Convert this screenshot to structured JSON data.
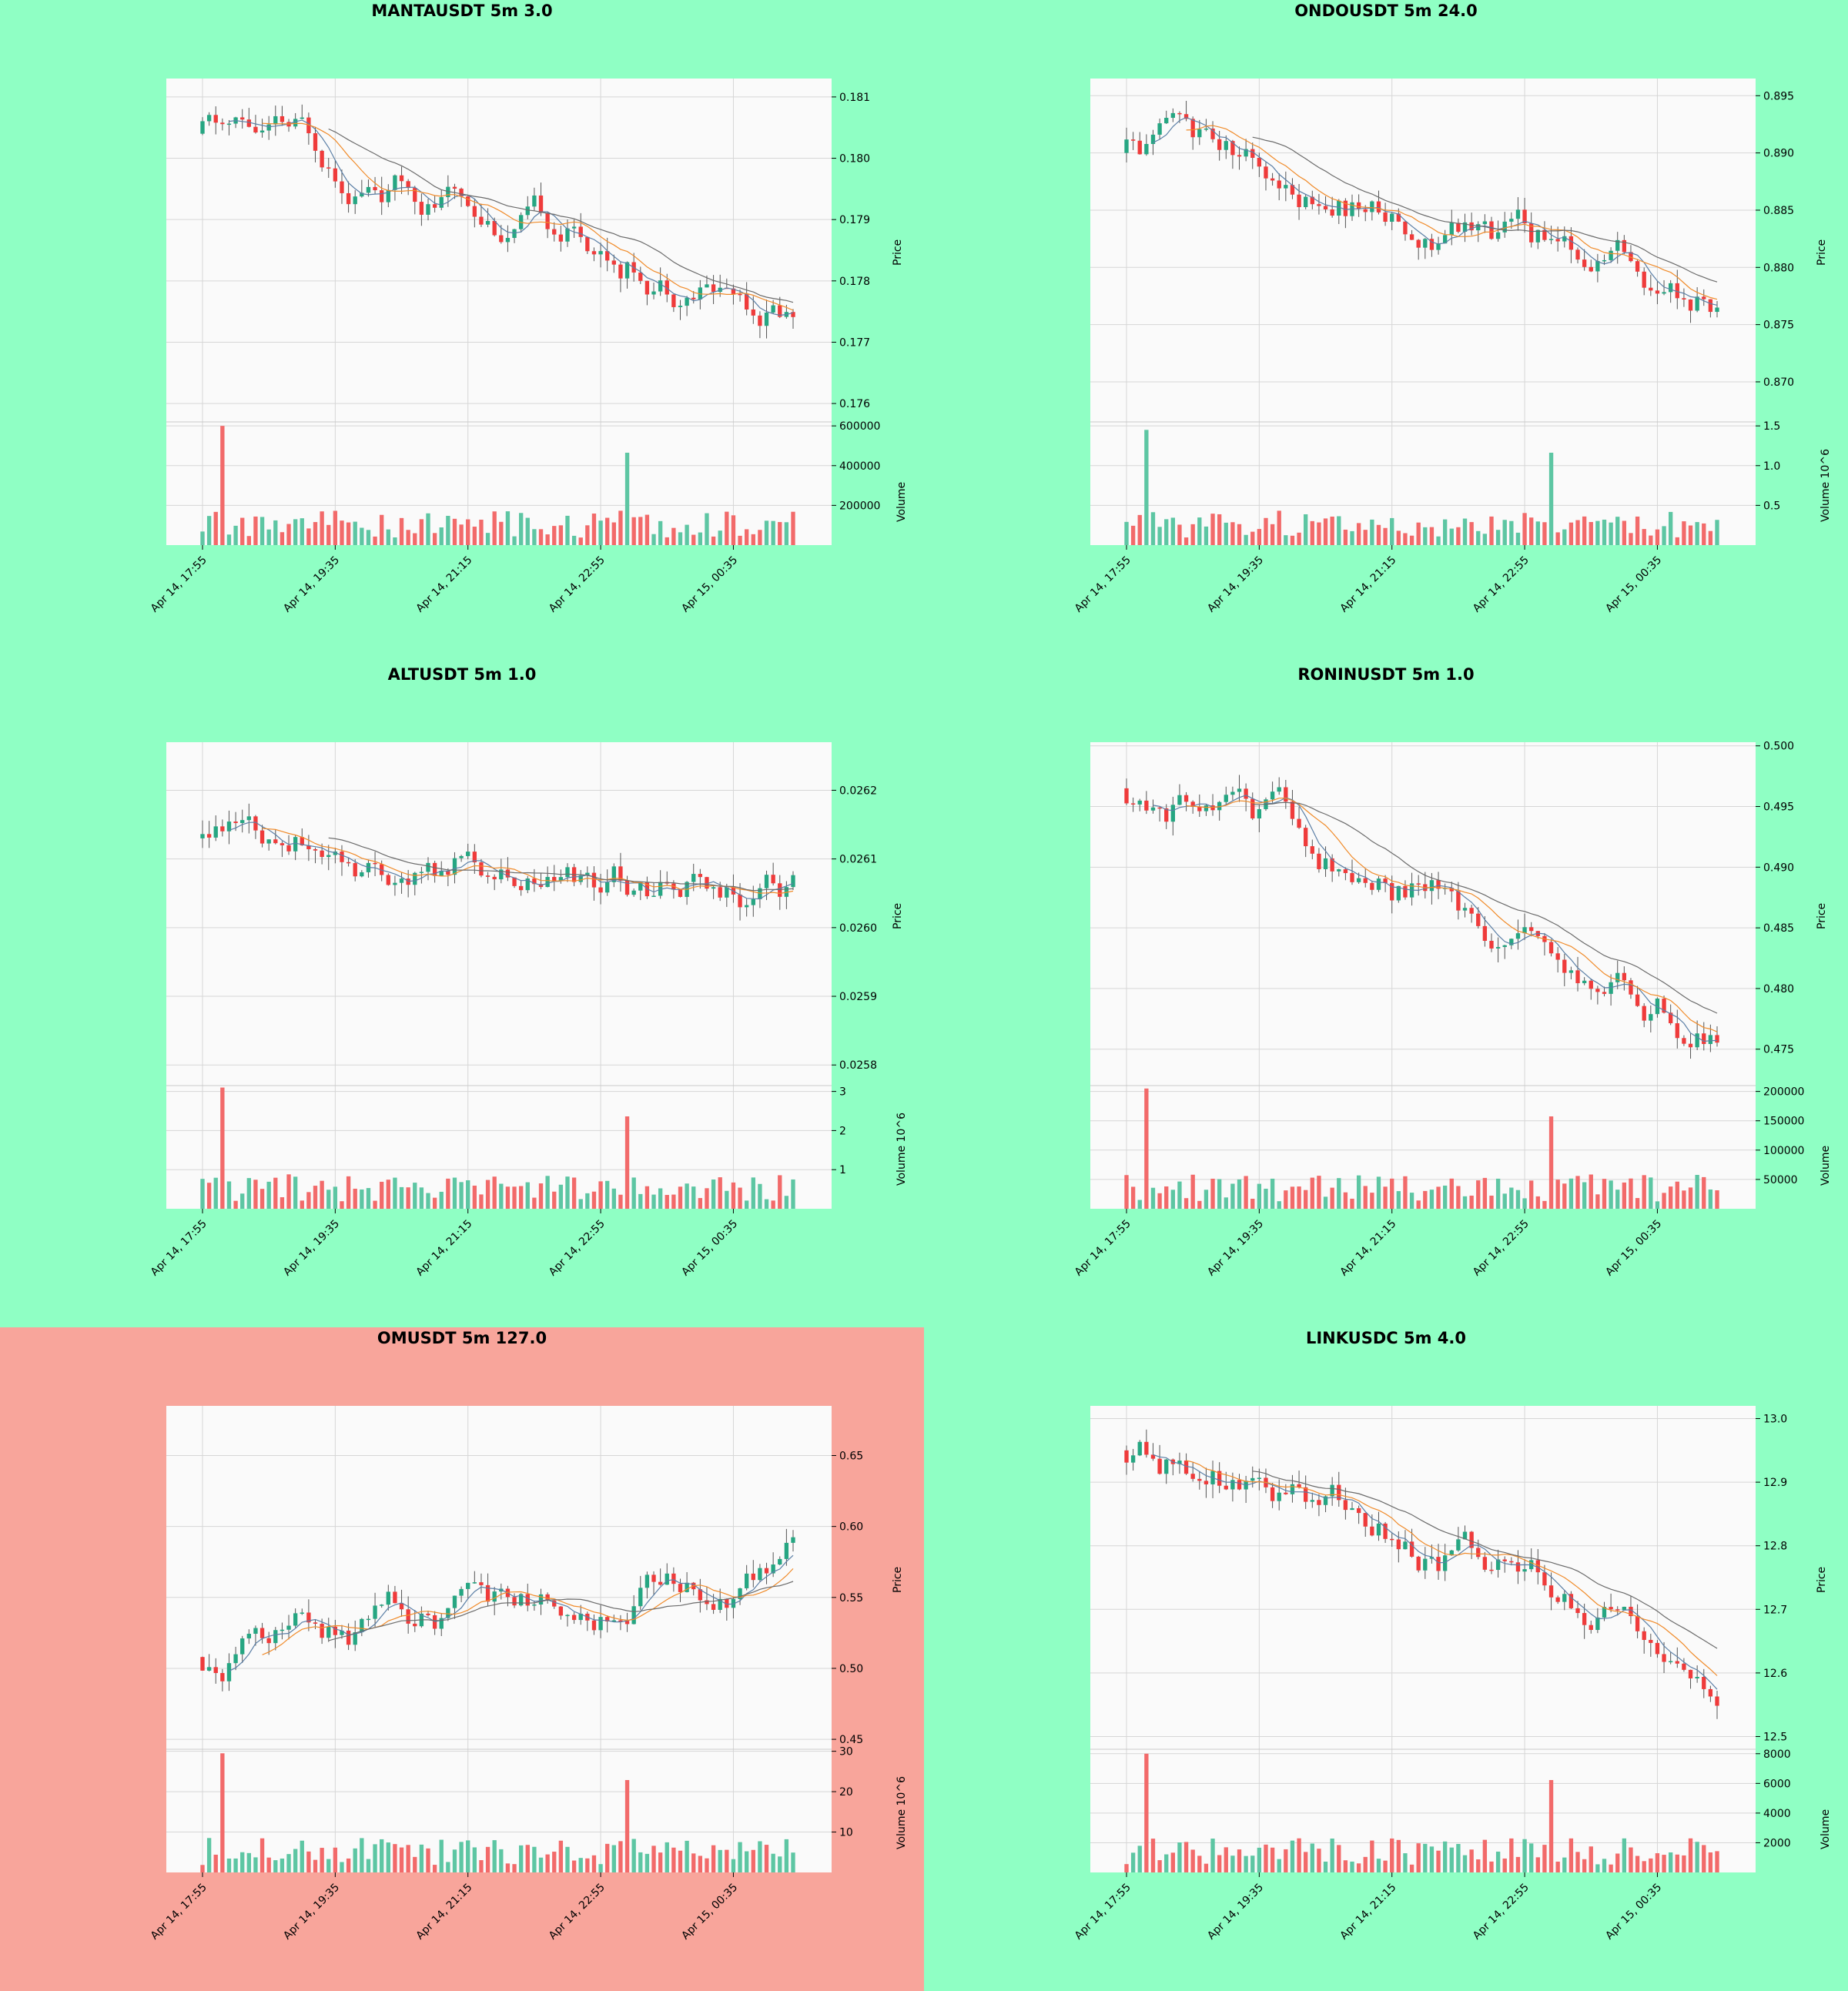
{
  "colors": {
    "up": "#26a682",
    "down": "#ef3b3b",
    "up_volume": "#5dc6a3",
    "down_volume": "#f26a6a",
    "ma_fast": "#5b7fa6",
    "ma_mid": "#f08b2a",
    "ma_slow": "#6b6b6b",
    "plot_bg": "#fafafa",
    "panel_bg_default": "#8fffc4",
    "panel_bg_highlight": "#f8a59b"
  },
  "chart_data": [
    {
      "type": "candlestick",
      "title": "MANTAUSDT 5m 3.0",
      "panel_bg": "#8fffc4",
      "ylabel": "Price",
      "volume_label": "Volume",
      "price_ticks": [
        "0.176",
        "0.177",
        "0.178",
        "0.179",
        "0.180",
        "0.181"
      ],
      "price_tick_values": [
        0.176,
        0.177,
        0.178,
        0.179,
        0.18,
        0.181
      ],
      "price_range": [
        0.1757,
        0.1813
      ],
      "volume_ticks": [
        "200000",
        "400000",
        "600000"
      ],
      "volume_tick_values": [
        200000,
        400000,
        600000
      ],
      "volume_max": 620000,
      "x_ticks": [
        "Apr 14, 17:55",
        "Apr 14, 19:35",
        "Apr 14, 21:15",
        "Apr 14, 22:55",
        "Apr 15, 00:35"
      ],
      "start_price": 0.1804,
      "end_price": 0.1775,
      "spike_volume": 600000,
      "candles": 90,
      "seed": 11
    },
    {
      "type": "candlestick",
      "title": "ONDOUSDT 5m 24.0",
      "panel_bg": "#8fffc4",
      "ylabel": "Price",
      "volume_label": "Volume  10^6",
      "price_ticks": [
        "0.870",
        "0.875",
        "0.880",
        "0.885",
        "0.890",
        "0.895"
      ],
      "price_tick_values": [
        0.87,
        0.875,
        0.88,
        0.885,
        0.89,
        0.895
      ],
      "price_range": [
        0.8665,
        0.8965
      ],
      "volume_ticks": [
        "0.5",
        "1.0",
        "1.5"
      ],
      "volume_tick_values": [
        0.5,
        1.0,
        1.5
      ],
      "volume_max": 1.55,
      "x_ticks": [
        "Apr 14, 17:55",
        "Apr 14, 19:35",
        "Apr 14, 21:15",
        "Apr 14, 22:55",
        "Apr 15, 00:35"
      ],
      "start_price": 0.89,
      "end_price": 0.877,
      "spike_volume": 1.45,
      "candles": 90,
      "seed": 23
    },
    {
      "type": "candlestick",
      "title": "ALTUSDT 5m 1.0",
      "panel_bg": "#8fffc4",
      "ylabel": "Price",
      "volume_label": "Volume  10^6",
      "price_ticks": [
        "0.0258",
        "0.0259",
        "0.0260",
        "0.0261",
        "0.0262"
      ],
      "price_tick_values": [
        0.0258,
        0.0259,
        0.026,
        0.0261,
        0.0262
      ],
      "price_range": [
        0.02577,
        0.02627
      ],
      "volume_ticks": [
        "1",
        "2",
        "3"
      ],
      "volume_tick_values": [
        1,
        2,
        3
      ],
      "volume_max": 3.15,
      "x_ticks": [
        "Apr 14, 17:55",
        "Apr 14, 19:35",
        "Apr 14, 21:15",
        "Apr 14, 22:55",
        "Apr 15, 00:35"
      ],
      "start_price": 0.02613,
      "end_price": 0.02605,
      "spike_volume": 3.1,
      "candles": 90,
      "seed": 37
    },
    {
      "type": "candlestick",
      "title": "RONINUSDT 5m 1.0",
      "panel_bg": "#8fffc4",
      "ylabel": "Price",
      "volume_label": "Volume",
      "price_ticks": [
        "0.475",
        "0.480",
        "0.485",
        "0.490",
        "0.495",
        "0.500"
      ],
      "price_tick_values": [
        0.475,
        0.48,
        0.485,
        0.49,
        0.495,
        0.5
      ],
      "price_range": [
        0.472,
        0.5003
      ],
      "volume_ticks": [
        "50000",
        "100000",
        "150000",
        "200000"
      ],
      "volume_tick_values": [
        50000,
        100000,
        150000,
        200000
      ],
      "volume_max": 210000,
      "x_ticks": [
        "Apr 14, 17:55",
        "Apr 14, 19:35",
        "Apr 14, 21:15",
        "Apr 14, 22:55",
        "Apr 15, 00:35"
      ],
      "start_price": 0.4965,
      "end_price": 0.476,
      "spike_volume": 205000,
      "candles": 90,
      "seed": 53
    },
    {
      "type": "candlestick",
      "title": "OMUSDT 5m 127.0",
      "panel_bg": "#f8a59b",
      "ylabel": "Price",
      "volume_label": "Volume  10^6",
      "price_ticks": [
        "0.45",
        "0.50",
        "0.55",
        "0.60",
        "0.65"
      ],
      "price_tick_values": [
        0.45,
        0.5,
        0.55,
        0.6,
        0.65
      ],
      "price_range": [
        0.443,
        0.685
      ],
      "volume_ticks": [
        "10",
        "20",
        "30"
      ],
      "volume_tick_values": [
        10,
        20,
        30
      ],
      "volume_max": 30.5,
      "x_ticks": [
        "Apr 14, 17:55",
        "Apr 14, 19:35",
        "Apr 14, 21:15",
        "Apr 14, 22:55",
        "Apr 15, 00:35"
      ],
      "start_price": 0.508,
      "end_price": 0.592,
      "spike_volume": 29.5,
      "candles": 90,
      "seed": 71
    },
    {
      "type": "candlestick",
      "title": "LINKUSDC 5m 4.0",
      "panel_bg": "#8fffc4",
      "ylabel": "Price",
      "volume_label": "Volume",
      "price_ticks": [
        "12.5",
        "12.6",
        "12.7",
        "12.8",
        "12.9",
        "13.0"
      ],
      "price_tick_values": [
        12.5,
        12.6,
        12.7,
        12.8,
        12.9,
        13.0
      ],
      "price_range": [
        12.48,
        13.02
      ],
      "volume_ticks": [
        "2000",
        "4000",
        "6000",
        "8000"
      ],
      "volume_tick_values": [
        2000,
        4000,
        6000,
        8000
      ],
      "volume_max": 8300,
      "x_ticks": [
        "Apr 14, 17:55",
        "Apr 14, 19:35",
        "Apr 14, 21:15",
        "Apr 14, 22:55",
        "Apr 15, 00:35"
      ],
      "start_price": 12.95,
      "end_price": 12.62,
      "spike_volume": 8000,
      "candles": 90,
      "seed": 89
    }
  ]
}
